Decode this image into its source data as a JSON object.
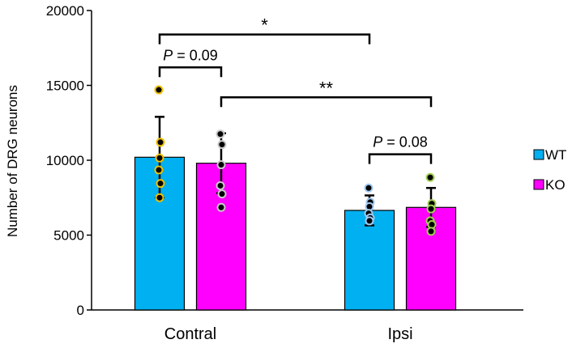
{
  "chart_data": {
    "type": "bar",
    "title": "",
    "xlabel": "",
    "ylabel": "Number of DRG neurons",
    "ylim": [
      0,
      20000
    ],
    "yticks": [
      0,
      5000,
      10000,
      15000,
      20000
    ],
    "categories": [
      "Contral",
      "Ipsi"
    ],
    "series": [
      {
        "name": "WT",
        "color": "#00b0f0",
        "values": [
          10200,
          6650
        ],
        "errors": [
          2700,
          1000
        ],
        "points": [
          [
            14700,
            11200,
            10150,
            9350,
            8450,
            7500
          ],
          [
            8150,
            7200,
            6900,
            6450,
            6150,
            5950
          ]
        ],
        "point_ring_colors": [
          "#f0c000",
          "#a0c8f0"
        ]
      },
      {
        "name": "KO",
        "color": "#ff00ff",
        "values": [
          9800,
          6850
        ],
        "errors": [
          2000,
          1300
        ],
        "points": [
          [
            11750,
            11050,
            9700,
            8300,
            7750,
            6850
          ],
          [
            8850,
            7100,
            6750,
            5950,
            5700,
            5250
          ]
        ],
        "point_ring_colors": [
          "#c8c8c8",
          "#a0d050"
        ]
      }
    ],
    "annotations": [
      {
        "text": "*",
        "from": "WT Contral",
        "to": "WT Ipsi",
        "level": 18400
      },
      {
        "text": "**",
        "from": "KO Contral",
        "to": "KO Ipsi",
        "level": 14200
      },
      {
        "text_p": "P",
        "text_rest": " = 0.09",
        "from": "WT Contral",
        "to": "KO Contral",
        "level": 16200
      },
      {
        "text_p": "P",
        "text_rest": " = 0.08",
        "from": "WT Ipsi",
        "to": "KO Ipsi",
        "level": 10400
      }
    ],
    "legend": {
      "position": "right",
      "entries": [
        "WT",
        "KO"
      ]
    }
  }
}
